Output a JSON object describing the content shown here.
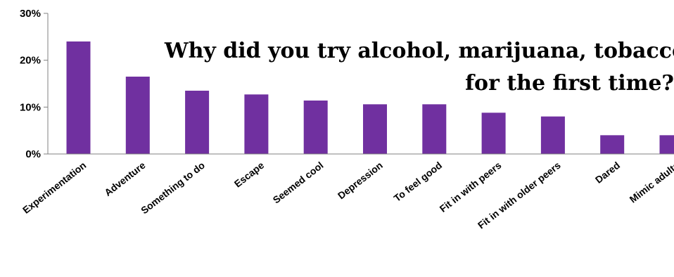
{
  "chart_data": {
    "type": "bar",
    "title": [
      "Why did you try alcohol, marijuana, tobacco",
      "for the first time?"
    ],
    "categories": [
      "Experimentation",
      "Adventure",
      "Something to do",
      "Escape",
      "Seemed cool",
      "Depression",
      "To feel good",
      "Fit in with peers",
      "Fit in with older peers",
      "Dared",
      "Mimic adults"
    ],
    "values": [
      24,
      16.5,
      13.5,
      12.7,
      11.4,
      10.6,
      10.6,
      8.8,
      8,
      4,
      4
    ],
    "yticks": [
      "0%",
      "10%",
      "20%",
      "30%"
    ],
    "ylim": [
      0,
      30
    ],
    "ylabel": "",
    "xlabel": "",
    "grid": false,
    "legend": "none",
    "bar_color": "#7030A0"
  }
}
